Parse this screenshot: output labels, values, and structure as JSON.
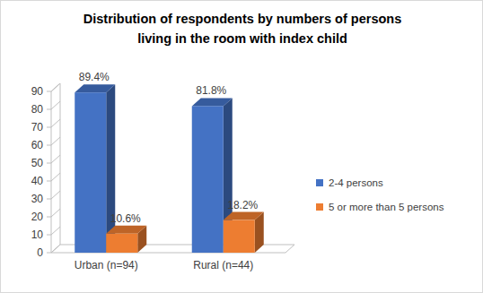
{
  "chart_data": {
    "type": "bar",
    "title": "Distribution of respondents by numbers of persons living in the room with index child",
    "categories": [
      "Urban (n=94)",
      "Rural (n=44)"
    ],
    "series": [
      {
        "name": "2-4 persons",
        "color": "#4472c4",
        "values": [
          89.4,
          81.8
        ],
        "value_labels": [
          "89.4%",
          "81.8%"
        ]
      },
      {
        "name": "5 or more than 5 persons",
        "color": "#ed7d31",
        "values": [
          10.6,
          18.2
        ],
        "value_labels": [
          "10.6%",
          "18.2%"
        ]
      }
    ],
    "ylim": [
      0,
      90
    ],
    "yticks": [
      0,
      10,
      20,
      30,
      40,
      50,
      60,
      70,
      80,
      90
    ],
    "grid": false,
    "legend": "right",
    "data_labels": true
  }
}
